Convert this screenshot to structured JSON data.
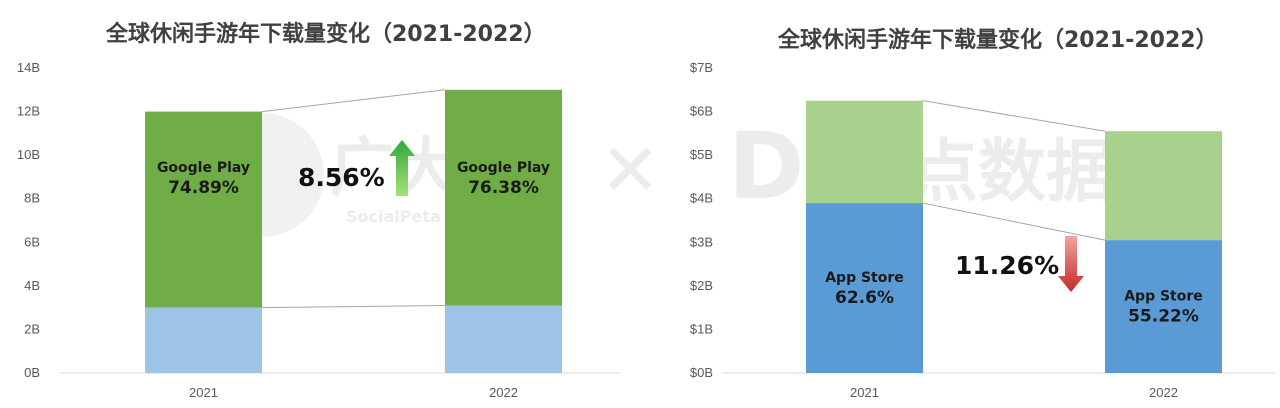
{
  "chart_data": [
    {
      "type": "bar",
      "stacked": true,
      "title": "全球休闲手游年下载量变化（2021-2022）",
      "categories": [
        "2021",
        "2022"
      ],
      "ylim": [
        0,
        14
      ],
      "yticks": [
        "0B",
        "2B",
        "4B",
        "6B",
        "8B",
        "10B",
        "12B",
        "14B"
      ],
      "series": [
        {
          "values": [
            3.0,
            3.1
          ],
          "color": "#9DC3E6"
        },
        {
          "name": "Google Play",
          "values": [
            9.0,
            9.9
          ],
          "color": "#70AD47"
        }
      ],
      "segment_labels": [
        {
          "name": "Google Play",
          "pct": "74.89%"
        },
        {
          "name": "Google Play",
          "pct": "76.38%"
        }
      ],
      "change": {
        "text": "8.56%",
        "direction": "up",
        "color": "#4CAF50"
      },
      "grid": false
    },
    {
      "type": "bar",
      "stacked": true,
      "title": "全球休闲手游年下载量变化（2021-2022）",
      "categories": [
        "2021",
        "2022"
      ],
      "ylim": [
        0,
        7
      ],
      "yticks": [
        "$0B",
        "$1B",
        "$2B",
        "$3B",
        "$4B",
        "$5B",
        "$6B",
        "$7B"
      ],
      "series": [
        {
          "name": "App Store",
          "values": [
            3.9,
            3.05
          ],
          "color": "#5B9BD5"
        },
        {
          "values": [
            2.35,
            2.5
          ],
          "color": "#A9D18E"
        }
      ],
      "segment_labels": [
        {
          "name": "App Store",
          "pct": "62.6%"
        },
        {
          "name": "App Store",
          "pct": "55.22%"
        }
      ],
      "change": {
        "text": "11.26%",
        "direction": "down",
        "color": "#E53935"
      },
      "grid": false
    }
  ],
  "watermark": {
    "left_text": "广大大",
    "left_sub": "SocialPeta 中国站",
    "separator": "✕",
    "right_logo": "D",
    "right_text": "点点数据"
  }
}
